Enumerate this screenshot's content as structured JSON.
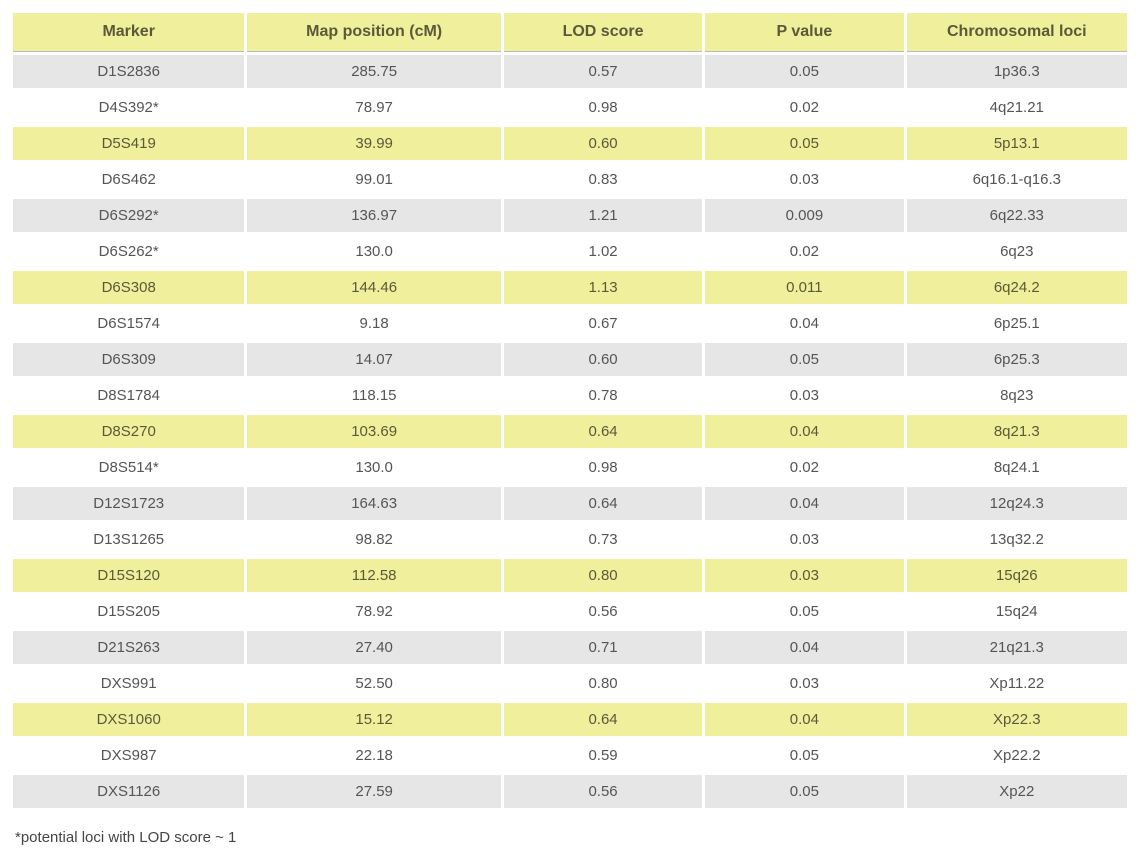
{
  "table": {
    "columns": [
      "Marker",
      "Map position (cM)",
      "LOD score",
      "P value",
      "Chromosomal loci"
    ],
    "column_widths_pct": [
      21,
      23,
      18,
      18,
      20
    ],
    "header_bg": "#efef9c",
    "header_text_color": "#5a5a3a",
    "row_bg_grey": "#e6e6e6",
    "row_bg_white": "#ffffff",
    "row_bg_yellow": "#efef9c",
    "text_color": "#555555",
    "yellow_text_color": "#5a5a3a",
    "header_fontsize": 16,
    "cell_fontsize": 15,
    "rows": [
      {
        "style": "grey",
        "cells": [
          "D1S2836",
          "285.75",
          "0.57",
          "0.05",
          "1p36.3"
        ]
      },
      {
        "style": "white",
        "cells": [
          "D4S392*",
          "78.97",
          "0.98",
          "0.02",
          "4q21.21"
        ]
      },
      {
        "style": "yellow",
        "cells": [
          "D5S419",
          "39.99",
          "0.60",
          "0.05",
          "5p13.1"
        ]
      },
      {
        "style": "white",
        "cells": [
          "D6S462",
          "99.01",
          "0.83",
          "0.03",
          "6q16.1-q16.3"
        ]
      },
      {
        "style": "grey",
        "cells": [
          "D6S292*",
          "136.97",
          "1.21",
          "0.009",
          "6q22.33"
        ]
      },
      {
        "style": "white",
        "cells": [
          "D6S262*",
          "130.0",
          "1.02",
          "0.02",
          "6q23"
        ]
      },
      {
        "style": "yellow",
        "cells": [
          "D6S308",
          "144.46",
          "1.13",
          "0.011",
          "6q24.2"
        ]
      },
      {
        "style": "white",
        "cells": [
          "D6S1574",
          "9.18",
          "0.67",
          "0.04",
          "6p25.1"
        ]
      },
      {
        "style": "grey",
        "cells": [
          "D6S309",
          "14.07",
          "0.60",
          "0.05",
          "6p25.3"
        ]
      },
      {
        "style": "white",
        "cells": [
          "D8S1784",
          "118.15",
          "0.78",
          "0.03",
          "8q23"
        ]
      },
      {
        "style": "yellow",
        "cells": [
          "D8S270",
          "103.69",
          "0.64",
          "0.04",
          "8q21.3"
        ]
      },
      {
        "style": "white",
        "cells": [
          "D8S514*",
          "130.0",
          "0.98",
          "0.02",
          "8q24.1"
        ]
      },
      {
        "style": "grey",
        "cells": [
          "D12S1723",
          "164.63",
          "0.64",
          "0.04",
          "12q24.3"
        ]
      },
      {
        "style": "white",
        "cells": [
          "D13S1265",
          "98.82",
          "0.73",
          "0.03",
          "13q32.2"
        ]
      },
      {
        "style": "yellow",
        "cells": [
          "D15S120",
          "112.58",
          "0.80",
          "0.03",
          "15q26"
        ]
      },
      {
        "style": "white",
        "cells": [
          "D15S205",
          "78.92",
          "0.56",
          "0.05",
          "15q24"
        ]
      },
      {
        "style": "grey",
        "cells": [
          "D21S263",
          "27.40",
          "0.71",
          "0.04",
          "21q21.3"
        ]
      },
      {
        "style": "white",
        "cells": [
          "DXS991",
          "52.50",
          "0.80",
          "0.03",
          "Xp11.22"
        ]
      },
      {
        "style": "yellow",
        "cells": [
          "DXS1060",
          "15.12",
          "0.64",
          "0.04",
          "Xp22.3"
        ]
      },
      {
        "style": "white",
        "cells": [
          "DXS987",
          "22.18",
          "0.59",
          "0.05",
          "Xp22.2"
        ]
      },
      {
        "style": "grey",
        "cells": [
          "DXS1126",
          "27.59",
          "0.56",
          "0.05",
          "Xp22"
        ]
      }
    ]
  },
  "footnote": "*potential loci with LOD score ~ 1"
}
